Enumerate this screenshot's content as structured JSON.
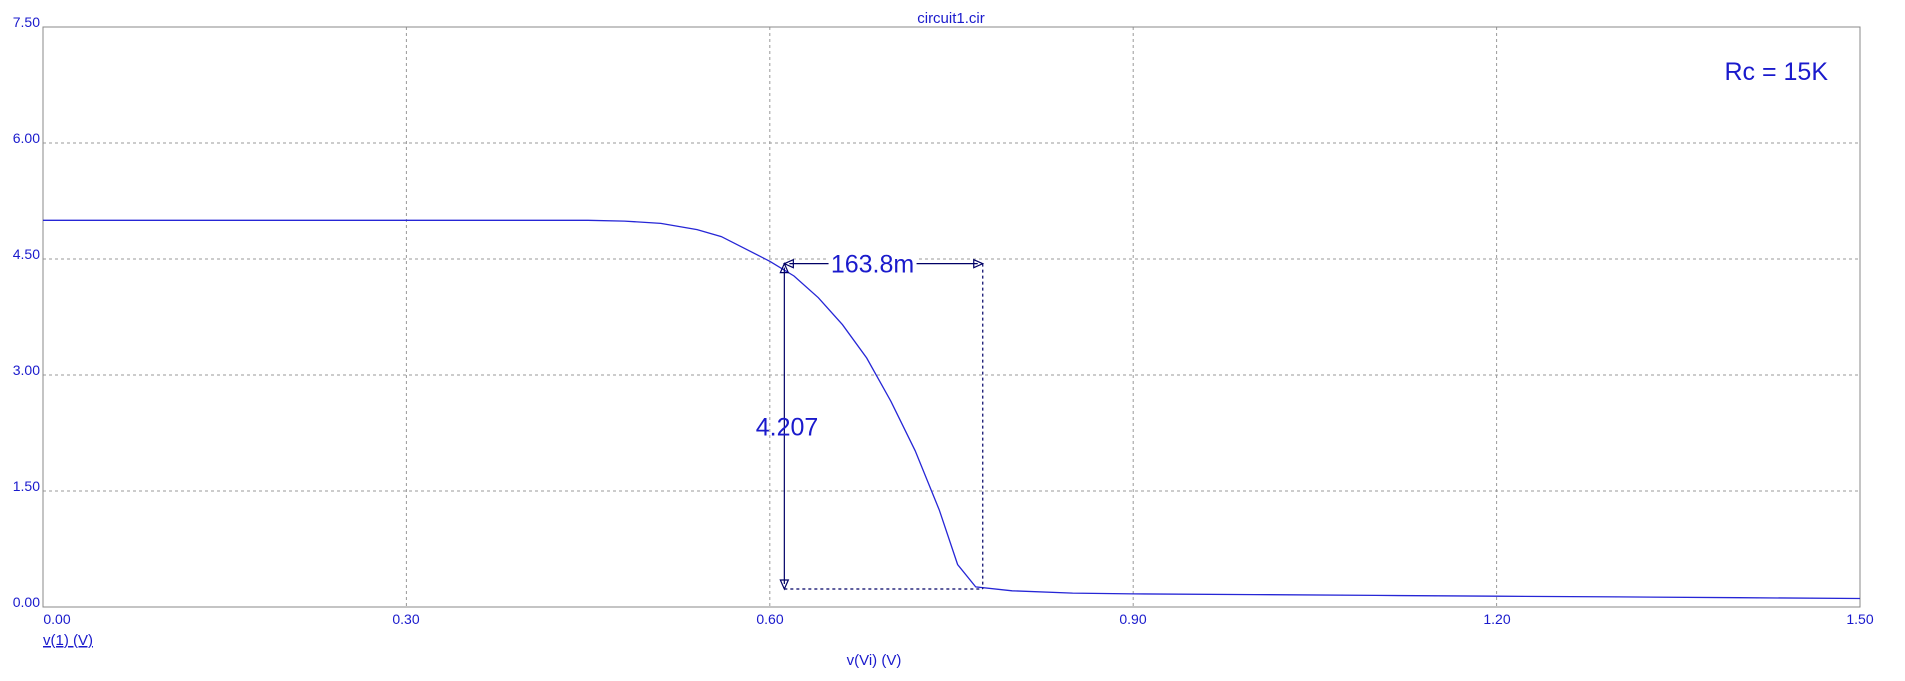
{
  "colors": {
    "ink": "#1a1acc",
    "frame": "#888888",
    "grid": "#999999",
    "trace": "#2626d6",
    "annotation": "#000066"
  },
  "chart_data": {
    "type": "line",
    "title": "circuit1.cir",
    "xlabel": "v(Vi) (V)",
    "ylabel": "v(1) (V)",
    "xlim": [
      0.0,
      1.5
    ],
    "ylim": [
      0.0,
      7.5
    ],
    "x_ticks": [
      "0.00",
      "0.30",
      "0.60",
      "0.90",
      "1.20",
      "1.50"
    ],
    "y_ticks": [
      "0.00",
      "1.50",
      "3.00",
      "4.50",
      "6.00",
      "7.50"
    ],
    "grid": true,
    "series": [
      {
        "x": [
          0.0,
          0.3,
          0.45,
          0.48,
          0.51,
          0.54,
          0.56,
          0.58,
          0.6,
          0.62,
          0.64,
          0.66,
          0.68,
          0.7,
          0.72,
          0.74,
          0.755,
          0.77,
          0.8,
          0.85,
          0.9,
          1.0,
          1.1,
          1.2,
          1.3,
          1.4,
          1.5
        ],
        "y": [
          5.0,
          5.0,
          5.0,
          4.99,
          4.96,
          4.88,
          4.79,
          4.63,
          4.47,
          4.28,
          4.0,
          3.65,
          3.22,
          2.66,
          2.02,
          1.25,
          0.55,
          0.26,
          0.21,
          0.18,
          0.17,
          0.16,
          0.15,
          0.14,
          0.13,
          0.12,
          0.11
        ]
      }
    ],
    "annotations": {
      "rc_label": "Rc = 15K",
      "dx_text": "163.8m",
      "dy_text": "4.207",
      "cursor1": {
        "x": 0.612,
        "y": 4.44
      },
      "cursor2": {
        "x": 0.7758,
        "y": 0.233
      }
    }
  }
}
